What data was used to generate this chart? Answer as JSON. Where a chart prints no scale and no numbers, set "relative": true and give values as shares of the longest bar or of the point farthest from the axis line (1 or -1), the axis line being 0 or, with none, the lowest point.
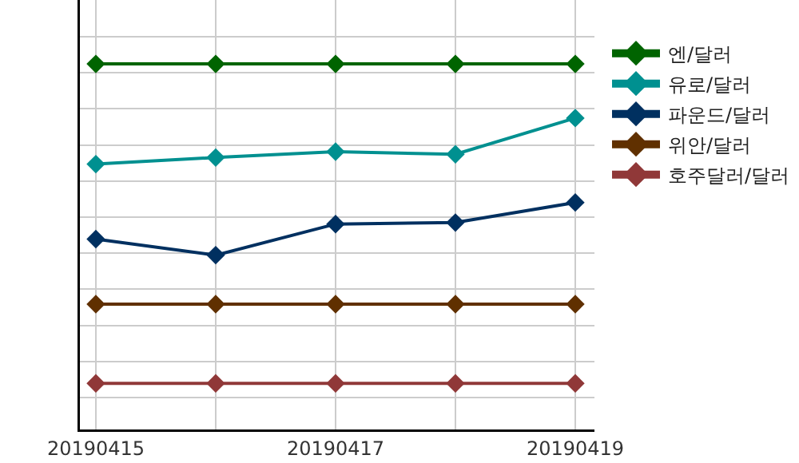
{
  "chart_data": {
    "type": "line",
    "relative": true,
    "categories": [
      "20190415",
      null,
      "20190417",
      null,
      "20190419"
    ],
    "series": [
      {
        "name": "엔/달러",
        "color": "#006400",
        "values": [
          1,
          1,
          1,
          1,
          1
        ]
      },
      {
        "name": "유로/달러",
        "color": "#009090",
        "values": [
          0.726,
          0.744,
          0.76,
          0.753,
          0.852
        ]
      },
      {
        "name": "파운드/달러",
        "color": "#003060",
        "values": [
          0.521,
          0.477,
          0.562,
          0.566,
          0.621
        ]
      },
      {
        "name": "위안/달러",
        "color": "#603000",
        "values": [
          0.343,
          0.343,
          0.343,
          0.343,
          0.343
        ]
      },
      {
        "name": "호주달러/달러",
        "color": "#903838",
        "values": [
          0.126,
          0.126,
          0.126,
          0.126,
          0.126
        ]
      }
    ],
    "marker": "diamond",
    "line_style": "solid",
    "grid": true,
    "legend": "top right"
  }
}
